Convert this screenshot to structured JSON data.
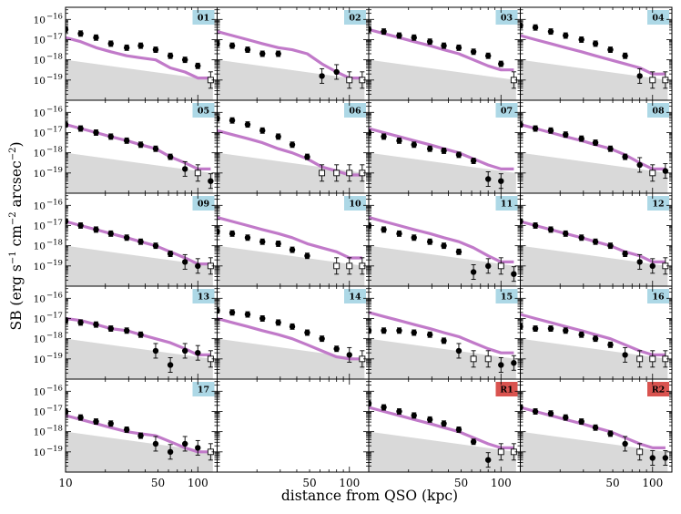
{
  "chart_data": {
    "type": "scatter",
    "xlabel": "distance from QSO (kpc)",
    "ylabel": "SB (erg s^-1 cm^-2 arcsec^-2)",
    "ylabel_parts": {
      "main": "SB (erg s",
      "exp1": "−1",
      "mid1": " cm",
      "exp2": "−2",
      "mid2": " arcsec",
      "exp3": "−2",
      "end": ")"
    },
    "xscale": "log",
    "yscale": "log",
    "xlim": [
      10,
      140
    ],
    "ylim": [
      1e-20,
      1e-15
    ],
    "x_ticks": [
      "10",
      "50",
      "100"
    ],
    "x_tick_values": [
      10,
      50,
      100
    ],
    "y_ticks": [
      "10",
      "10",
      "10",
      "10"
    ],
    "y_tick_exponents": [
      "−16",
      "−17",
      "−18",
      "−19"
    ],
    "y_tick_values": [
      -16,
      -17,
      -18,
      -19
    ],
    "colors": {
      "model": "#c17ac9",
      "noise_band": "#d9d9d9",
      "qso_tag": "#add8e6",
      "random_tag": "#d9534f"
    },
    "radial_bins": [
      10,
      13,
      17,
      22,
      29,
      37,
      48,
      62,
      80,
      100,
      125
    ],
    "noise_band": {
      "x": [
        10,
        130
      ],
      "upper": [
        -18.0,
        -19.0
      ]
    },
    "panels": [
      {
        "label": "01",
        "tag_color": "#add8e6",
        "model": [
          -16.9,
          -17.1,
          -17.4,
          -17.6,
          -17.8,
          -17.9,
          -18.0,
          -18.4,
          -18.6,
          -18.9,
          -18.9
        ],
        "points": [
          -16.5,
          -16.7,
          -16.9,
          -17.2,
          -17.4,
          -17.3,
          -17.5,
          -17.8,
          -18.0,
          -18.3,
          -19.0
        ],
        "upper_limit": [
          false,
          false,
          false,
          false,
          false,
          false,
          false,
          false,
          false,
          false,
          true
        ]
      },
      {
        "label": "02",
        "tag_color": "#add8e6",
        "model": [
          -16.6,
          -16.8,
          -17.0,
          -17.2,
          -17.4,
          -17.5,
          -17.7,
          -18.2,
          -18.6,
          -18.9,
          -18.9
        ],
        "points": [
          -17.2,
          -17.3,
          -17.5,
          -17.7,
          -17.7,
          null,
          null,
          -18.8,
          -18.6,
          -19.0,
          -19.0
        ],
        "upper_limit": [
          false,
          false,
          false,
          false,
          false,
          false,
          false,
          false,
          false,
          true,
          true
        ]
      },
      {
        "label": "03",
        "tag_color": "#add8e6",
        "model": [
          -16.5,
          -16.7,
          -16.9,
          -17.1,
          -17.3,
          -17.5,
          -17.7,
          -18.0,
          -18.3,
          -18.5,
          -18.5
        ],
        "points": [
          -16.5,
          -16.6,
          -16.8,
          -16.9,
          -17.1,
          -17.3,
          -17.4,
          -17.6,
          -17.8,
          -18.2,
          -19.0
        ],
        "upper_limit": [
          false,
          false,
          false,
          false,
          false,
          false,
          false,
          false,
          false,
          false,
          true
        ]
      },
      {
        "label": "04",
        "tag_color": "#add8e6",
        "model": [
          -16.8,
          -17.0,
          -17.2,
          -17.4,
          -17.6,
          -17.8,
          -18.0,
          -18.2,
          -18.4,
          -18.7,
          -18.7
        ],
        "points": [
          -16.3,
          -16.4,
          -16.6,
          -16.8,
          -17.0,
          -17.2,
          -17.5,
          -17.8,
          -18.8,
          -19.0,
          -19.0
        ],
        "upper_limit": [
          false,
          false,
          false,
          false,
          false,
          false,
          false,
          false,
          false,
          true,
          true
        ]
      },
      {
        "label": "05",
        "tag_color": "#add8e6",
        "model": [
          -16.6,
          -16.8,
          -17.0,
          -17.2,
          -17.4,
          -17.6,
          -17.8,
          -18.2,
          -18.5,
          -18.8,
          -18.8
        ],
        "points": [
          -16.6,
          -16.8,
          -17.0,
          -17.2,
          -17.4,
          -17.6,
          -17.8,
          -18.2,
          -18.8,
          -19.0,
          -19.4
        ],
        "upper_limit": [
          false,
          false,
          false,
          false,
          false,
          false,
          false,
          false,
          false,
          true,
          false
        ]
      },
      {
        "label": "06",
        "tag_color": "#add8e6",
        "model": [
          -16.9,
          -17.1,
          -17.3,
          -17.5,
          -17.8,
          -18.0,
          -18.3,
          -18.7,
          -18.9,
          -19.1,
          -19.1
        ],
        "points": [
          -16.3,
          -16.4,
          -16.6,
          -16.9,
          -17.2,
          -17.6,
          -18.2,
          -19.0,
          -19.0,
          -19.0,
          -19.0
        ],
        "upper_limit": [
          false,
          false,
          false,
          false,
          false,
          false,
          false,
          true,
          true,
          true,
          true
        ]
      },
      {
        "label": "07",
        "tag_color": "#add8e6",
        "model": [
          -16.8,
          -17.0,
          -17.2,
          -17.4,
          -17.6,
          -17.8,
          -18.0,
          -18.3,
          -18.6,
          -18.8,
          -18.8
        ],
        "points": [
          -17.0,
          -17.2,
          -17.4,
          -17.6,
          -17.8,
          -17.9,
          -18.1,
          -18.4,
          -19.3,
          -19.4,
          null
        ],
        "upper_limit": [
          false,
          false,
          false,
          false,
          false,
          false,
          false,
          false,
          false,
          false,
          false
        ]
      },
      {
        "label": "08",
        "tag_color": "#add8e6",
        "model": [
          -16.6,
          -16.8,
          -17.0,
          -17.2,
          -17.4,
          -17.6,
          -17.8,
          -18.1,
          -18.5,
          -18.8,
          -18.8
        ],
        "points": [
          -16.6,
          -16.8,
          -16.9,
          -17.1,
          -17.3,
          -17.5,
          -17.8,
          -18.2,
          -18.6,
          -19.0,
          -18.9
        ],
        "upper_limit": [
          false,
          false,
          false,
          false,
          false,
          false,
          false,
          false,
          false,
          true,
          false
        ]
      },
      {
        "label": "09",
        "tag_color": "#add8e6",
        "model": [
          -16.8,
          -17.0,
          -17.2,
          -17.4,
          -17.6,
          -17.8,
          -18.0,
          -18.3,
          -18.6,
          -18.9,
          -18.9
        ],
        "points": [
          -16.8,
          -17.0,
          -17.2,
          -17.4,
          -17.6,
          -17.8,
          -18.0,
          -18.4,
          -18.8,
          -19.0,
          -19.0
        ],
        "upper_limit": [
          false,
          false,
          false,
          false,
          false,
          false,
          false,
          false,
          false,
          false,
          true
        ]
      },
      {
        "label": "10",
        "tag_color": "#add8e6",
        "model": [
          -16.6,
          -16.8,
          -17.0,
          -17.2,
          -17.4,
          -17.6,
          -17.9,
          -18.1,
          -18.3,
          -18.6,
          -18.6
        ],
        "points": [
          -17.3,
          -17.4,
          -17.6,
          -17.8,
          -17.9,
          -18.2,
          -18.5,
          null,
          -19.0,
          -19.0,
          -19.0
        ],
        "upper_limit": [
          false,
          false,
          false,
          false,
          false,
          false,
          false,
          false,
          true,
          true,
          true
        ]
      },
      {
        "label": "11",
        "tag_color": "#add8e6",
        "model": [
          -16.6,
          -16.8,
          -17.0,
          -17.2,
          -17.4,
          -17.6,
          -17.8,
          -18.1,
          -18.5,
          -18.8,
          -18.8
        ],
        "points": [
          -17.0,
          -17.2,
          -17.4,
          -17.6,
          -17.8,
          -18.0,
          -18.3,
          -19.3,
          -19.0,
          -19.0,
          -19.4
        ],
        "upper_limit": [
          false,
          false,
          false,
          false,
          false,
          false,
          false,
          false,
          false,
          true,
          false
        ]
      },
      {
        "label": "12",
        "tag_color": "#add8e6",
        "model": [
          -16.8,
          -17.0,
          -17.2,
          -17.4,
          -17.6,
          -17.8,
          -18.0,
          -18.3,
          -18.5,
          -18.8,
          -18.8
        ],
        "points": [
          -16.8,
          -17.0,
          -17.2,
          -17.4,
          -17.6,
          -17.8,
          -18.0,
          -18.4,
          -18.8,
          -19.0,
          -19.0
        ],
        "upper_limit": [
          false,
          false,
          false,
          false,
          false,
          false,
          false,
          false,
          false,
          false,
          true
        ]
      },
      {
        "label": "13",
        "tag_color": "#add8e6",
        "model": [
          -17.0,
          -17.1,
          -17.3,
          -17.5,
          -17.6,
          -17.8,
          -18.0,
          -18.2,
          -18.5,
          -18.8,
          -18.8
        ],
        "points": [
          -17.1,
          -17.2,
          -17.3,
          -17.5,
          -17.6,
          -17.8,
          -18.6,
          -19.3,
          -18.6,
          -18.7,
          -19.0
        ],
        "upper_limit": [
          false,
          false,
          false,
          false,
          false,
          false,
          false,
          false,
          false,
          false,
          true
        ]
      },
      {
        "label": "14",
        "tag_color": "#add8e6",
        "model": [
          -17.0,
          -17.2,
          -17.4,
          -17.6,
          -17.8,
          -18.0,
          -18.3,
          -18.6,
          -18.9,
          -19.0,
          -19.0
        ],
        "points": [
          -16.6,
          -16.7,
          -16.8,
          -17.0,
          -17.2,
          -17.4,
          -17.7,
          -18.0,
          -18.5,
          -18.8,
          -19.0
        ],
        "upper_limit": [
          false,
          false,
          false,
          false,
          false,
          false,
          false,
          false,
          false,
          false,
          true
        ]
      },
      {
        "label": "15",
        "tag_color": "#add8e6",
        "model": [
          -16.7,
          -16.9,
          -17.1,
          -17.3,
          -17.5,
          -17.7,
          -17.9,
          -18.2,
          -18.5,
          -18.7,
          -18.7
        ],
        "points": [
          -17.6,
          -17.6,
          -17.6,
          -17.7,
          -17.8,
          -18.1,
          -18.6,
          -19.0,
          -19.0,
          -19.3,
          -19.2
        ],
        "upper_limit": [
          false,
          false,
          false,
          false,
          false,
          false,
          false,
          true,
          true,
          false,
          false
        ]
      },
      {
        "label": "16",
        "tag_color": "#add8e6",
        "model": [
          -16.8,
          -17.0,
          -17.2,
          -17.4,
          -17.6,
          -17.8,
          -18.0,
          -18.3,
          -18.6,
          -18.8,
          -18.8
        ],
        "points": [
          -17.4,
          -17.5,
          -17.5,
          -17.6,
          -17.8,
          -18.0,
          -18.3,
          -18.8,
          -19.0,
          -19.0,
          -19.0
        ],
        "upper_limit": [
          false,
          false,
          false,
          false,
          false,
          false,
          false,
          false,
          true,
          true,
          true
        ]
      },
      {
        "label": "17",
        "tag_color": "#add8e6",
        "model": [
          -17.2,
          -17.4,
          -17.6,
          -17.8,
          -18.0,
          -18.1,
          -18.2,
          -18.5,
          -18.8,
          -19.0,
          -19.0
        ],
        "points": [
          -17.0,
          -17.3,
          -17.5,
          -17.6,
          -17.9,
          -18.2,
          -18.6,
          -19.0,
          -18.6,
          -18.8,
          -19.0
        ],
        "upper_limit": [
          false,
          false,
          false,
          false,
          false,
          false,
          false,
          false,
          false,
          false,
          true
        ]
      },
      {
        "label": "",
        "tag_color": "",
        "empty": true,
        "model": [],
        "points": [],
        "upper_limit": []
      },
      {
        "label": "R1",
        "tag_color": "#d9534f",
        "model": [
          -16.8,
          -17.0,
          -17.2,
          -17.4,
          -17.6,
          -17.8,
          -18.0,
          -18.3,
          -18.6,
          -18.8,
          -18.8
        ],
        "points": [
          -16.6,
          -16.8,
          -17.0,
          -17.2,
          -17.4,
          -17.6,
          -17.9,
          -18.5,
          -19.4,
          -19.0,
          -19.0
        ],
        "upper_limit": [
          false,
          false,
          false,
          false,
          false,
          false,
          false,
          false,
          false,
          true,
          true
        ]
      },
      {
        "label": "R2",
        "tag_color": "#d9534f",
        "model": [
          -16.8,
          -17.0,
          -17.2,
          -17.4,
          -17.6,
          -17.8,
          -18.0,
          -18.3,
          -18.6,
          -18.8,
          -18.8
        ],
        "points": [
          -16.8,
          -17.0,
          -17.1,
          -17.3,
          -17.5,
          -17.8,
          -18.1,
          -18.6,
          -19.0,
          -19.3,
          -19.3
        ],
        "upper_limit": [
          false,
          false,
          false,
          false,
          false,
          false,
          false,
          false,
          true,
          false,
          false
        ]
      }
    ]
  }
}
